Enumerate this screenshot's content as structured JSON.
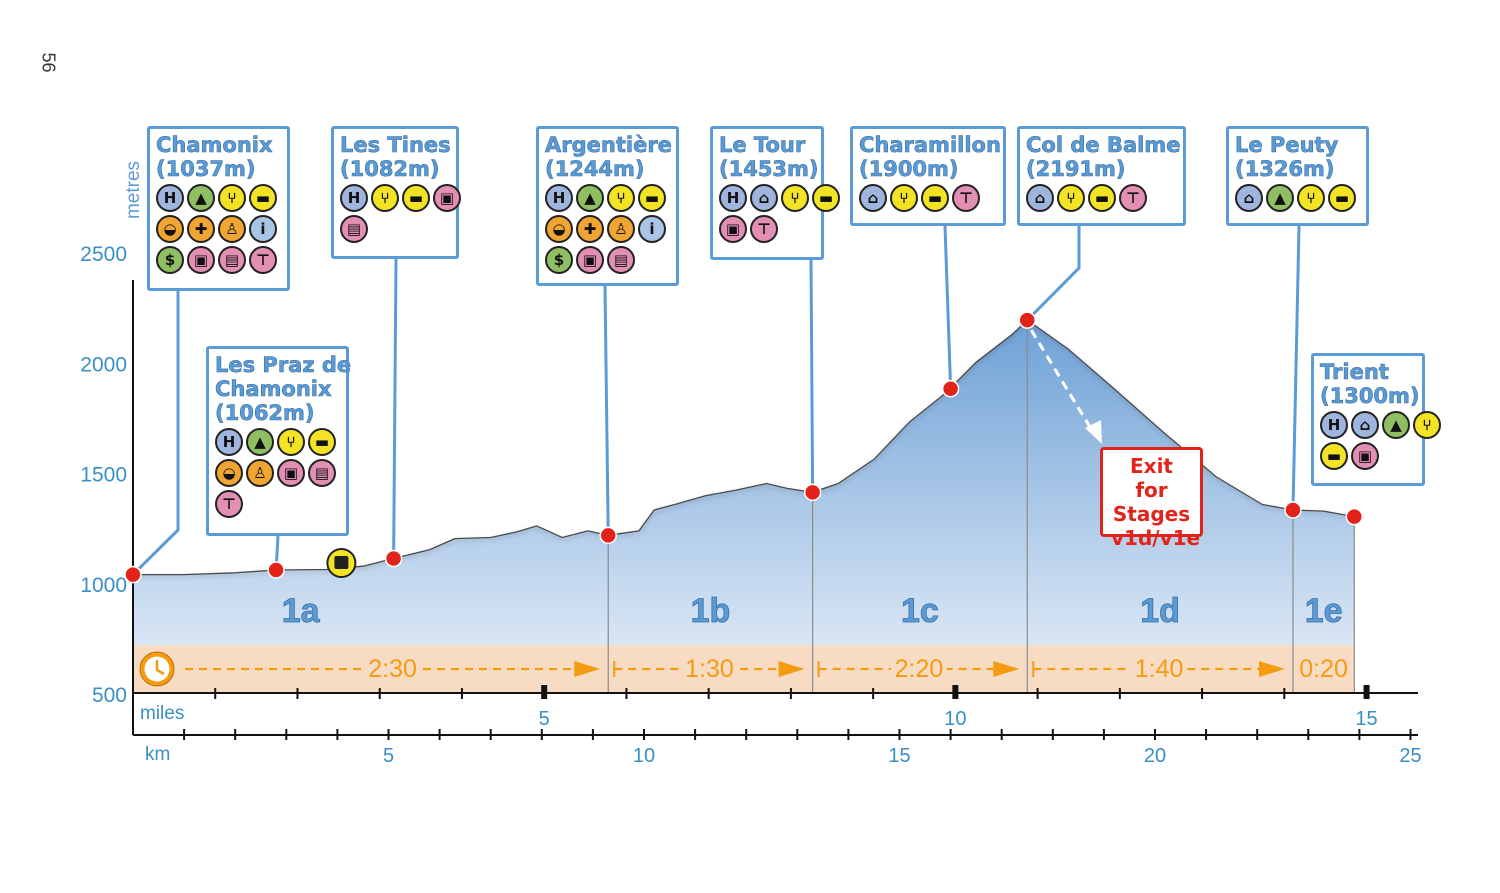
{
  "page_number": "56",
  "colors": {
    "accent": "#5b9bd5",
    "marker": "#e2231a",
    "time": "#f39c12",
    "fill_top": "#6ea1d6",
    "fill_bottom": "#e9f0f9",
    "time_band": "#f7dcc3"
  },
  "chart_data": {
    "type": "area",
    "title": "",
    "ylabel": "metres",
    "ylim": [
      500,
      2700
    ],
    "yticks": [
      500,
      1000,
      1500,
      2000,
      2500
    ],
    "xlim_km": [
      0,
      25
    ],
    "km_axis": {
      "label": "km",
      "ticks": [
        5,
        10,
        15,
        20,
        25
      ]
    },
    "miles_axis": {
      "label": "miles",
      "ticks": [
        5,
        10,
        15
      ]
    },
    "profile": [
      [
        0,
        1037
      ],
      [
        1.0,
        1037
      ],
      [
        2.0,
        1045
      ],
      [
        2.8,
        1058
      ],
      [
        3.8,
        1060
      ],
      [
        4.5,
        1075
      ],
      [
        5.1,
        1110
      ],
      [
        5.8,
        1150
      ],
      [
        6.3,
        1200
      ],
      [
        7.0,
        1205
      ],
      [
        7.5,
        1230
      ],
      [
        7.9,
        1258
      ],
      [
        8.4,
        1205
      ],
      [
        8.9,
        1235
      ],
      [
        9.3,
        1215
      ],
      [
        9.9,
        1235
      ],
      [
        10.2,
        1330
      ],
      [
        10.6,
        1355
      ],
      [
        11.2,
        1395
      ],
      [
        11.8,
        1420
      ],
      [
        12.4,
        1450
      ],
      [
        12.8,
        1428
      ],
      [
        13.3,
        1410
      ],
      [
        13.8,
        1450
      ],
      [
        14.5,
        1560
      ],
      [
        15.2,
        1730
      ],
      [
        15.9,
        1860
      ],
      [
        16.5,
        2000
      ],
      [
        17.2,
        2125
      ],
      [
        17.5,
        2191
      ],
      [
        18.3,
        2060
      ],
      [
        19.2,
        1880
      ],
      [
        20.2,
        1675
      ],
      [
        21.2,
        1480
      ],
      [
        22.1,
        1355
      ],
      [
        22.7,
        1330
      ],
      [
        23.3,
        1325
      ],
      [
        23.9,
        1300
      ]
    ],
    "waypoints": [
      {
        "name": "Chamonix",
        "altitude": "(1037m)",
        "km": 0,
        "alt": 1037,
        "icons": [
          "H",
          "tent",
          "fork",
          "cup",
          "bag",
          "cross",
          "hiker",
          "info",
          "dollar",
          "bus",
          "train",
          "cable"
        ]
      },
      {
        "name": "Les Praz de Chamonix",
        "name_lines": [
          "Les Praz de",
          "Chamonix"
        ],
        "altitude": "(1062m)",
        "km": 2.8,
        "alt": 1058,
        "icons": [
          "H",
          "tent",
          "fork",
          "cup",
          "bag",
          "hiker",
          "bus",
          "train",
          "cable"
        ]
      },
      {
        "name": "Les Tines",
        "altitude": "(1082m)",
        "km": 5.1,
        "alt": 1110,
        "icons": [
          "H",
          "fork",
          "cup",
          "bus",
          "train"
        ]
      },
      {
        "name": "Argentière",
        "altitude": "(1244m)",
        "km": 9.3,
        "alt": 1215,
        "icons": [
          "H",
          "tent",
          "fork",
          "cup",
          "bag",
          "cross",
          "hiker",
          "info",
          "dollar",
          "bus",
          "train"
        ]
      },
      {
        "name": "Le Tour",
        "altitude": "(1453m)",
        "km": 13.3,
        "alt": 1410,
        "icons": [
          "H",
          "house",
          "fork",
          "cup",
          "bus",
          "cable"
        ]
      },
      {
        "name": "Charamillon",
        "altitude": "(1900m)",
        "km": 16.0,
        "alt": 1880,
        "icons": [
          "house",
          "fork",
          "cup",
          "cable"
        ]
      },
      {
        "name": "Col de Balme",
        "altitude": "(2191m)",
        "km": 17.5,
        "alt": 2191,
        "icons": [
          "house",
          "fork",
          "cup",
          "cable"
        ]
      },
      {
        "name": "Le Peuty",
        "altitude": "(1326m)",
        "km": 22.7,
        "alt": 1330,
        "icons": [
          "house",
          "tent",
          "fork",
          "cup"
        ]
      },
      {
        "name": "Trient",
        "altitude": "(1300m)",
        "km": 23.9,
        "alt": 1300,
        "icons": [
          "H",
          "house",
          "tent",
          "fork",
          "cup",
          "bus"
        ]
      }
    ],
    "extra_icon": {
      "km": 4.0,
      "type": "cup"
    },
    "stages": [
      {
        "label": "1a",
        "start_km": 0,
        "end_km": 9.3,
        "time": "2:30"
      },
      {
        "label": "1b",
        "start_km": 9.3,
        "end_km": 13.3,
        "time": "1:30"
      },
      {
        "label": "1c",
        "start_km": 13.3,
        "end_km": 17.5,
        "time": "2:20"
      },
      {
        "label": "1d",
        "start_km": 17.5,
        "end_km": 22.7,
        "time": "1:40"
      },
      {
        "label": "1e",
        "start_km": 22.7,
        "end_km": 23.9,
        "time": "0:20"
      }
    ],
    "annotation": {
      "lines": [
        "Exit for",
        "Stages",
        "v1d/v1e"
      ],
      "from_km": 17.5,
      "from_alt": 2191
    }
  }
}
